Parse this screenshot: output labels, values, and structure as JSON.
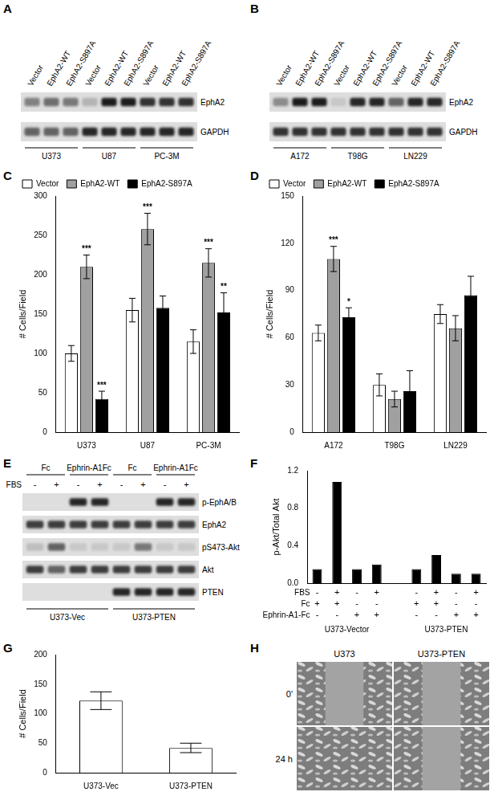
{
  "panel_labels": [
    "A",
    "B",
    "C",
    "D",
    "E",
    "F",
    "G",
    "H"
  ],
  "blots": [
    {
      "lanes": [
        "Vector",
        "EphA2-WT",
        "EphA2-S897A",
        "Vector",
        "EphA2-WT",
        "EphA2-S897A",
        "Vector",
        "EphA2-WT",
        "EphA2-S897A"
      ],
      "rows": [
        {
          "label": "EphA2",
          "intensity": [
            0.45,
            0.55,
            0.5,
            0.2,
            0.95,
            0.95,
            0.85,
            0.85,
            0.85
          ]
        },
        {
          "label": "GAPDH",
          "intensity": [
            0.6,
            0.6,
            0.6,
            0.9,
            0.9,
            0.9,
            0.9,
            0.9,
            0.9
          ]
        }
      ],
      "groups": [
        {
          "label": "U373",
          "lanes": 3
        },
        {
          "label": "U87",
          "lanes": 3
        },
        {
          "label": "PC-3M",
          "lanes": 3
        }
      ]
    },
    {
      "lanes": [
        "Vector",
        "EphA2-WT",
        "EphA2-S897A",
        "Vector",
        "EphA2-WT",
        "EphA2-S897A",
        "Vector",
        "EphA2-WT",
        "EphA2-S897A"
      ],
      "rows": [
        {
          "label": "EphA2",
          "intensity": [
            0.4,
            0.95,
            0.95,
            0.1,
            0.9,
            0.9,
            0.6,
            0.9,
            0.9
          ]
        },
        {
          "label": "GAPDH",
          "intensity": [
            0.85,
            0.85,
            0.85,
            0.85,
            0.85,
            0.85,
            0.85,
            0.85,
            0.85
          ]
        }
      ],
      "groups": [
        {
          "label": "A172",
          "lanes": 3
        },
        {
          "label": "T98G",
          "lanes": 3
        },
        {
          "label": "LN229",
          "lanes": 3
        }
      ]
    },
    {
      "treatments": [
        {
          "label": "Fc",
          "lanes": 2
        },
        {
          "label": "Ephrin-A1Fc",
          "lanes": 2
        },
        {
          "label": "Fc",
          "lanes": 2
        },
        {
          "label": "Ephrin-A1Fc",
          "lanes": 2
        }
      ],
      "fbs_label": "FBS",
      "fbs": [
        "-",
        "+",
        "-",
        "+",
        "-",
        "+",
        "-",
        "+"
      ],
      "rows": [
        {
          "label": "p-EphA/B",
          "intensity": [
            0,
            0,
            0.9,
            0.9,
            0,
            0,
            0.9,
            0.9
          ]
        },
        {
          "label": "EphA2",
          "intensity": [
            0.8,
            0.8,
            0.8,
            0.8,
            0.8,
            0.8,
            0.8,
            0.8
          ]
        },
        {
          "label": "pS473-Akt",
          "intensity": [
            0.15,
            0.6,
            0.1,
            0.1,
            0.1,
            0.5,
            0.1,
            0.1
          ]
        },
        {
          "label": "Akt",
          "intensity": [
            0.8,
            0.6,
            0.8,
            0.8,
            0.8,
            0.8,
            0.8,
            0.8
          ]
        },
        {
          "label": "PTEN",
          "intensity": [
            0,
            0,
            0,
            0,
            0.9,
            0.9,
            0.9,
            0.9
          ]
        }
      ],
      "groups": [
        {
          "label": "U373-Vec",
          "lanes": 4
        },
        {
          "label": "U373-PTEN",
          "lanes": 4
        }
      ]
    }
  ],
  "chart_data": [
    {
      "type": "bar",
      "categories": [
        "U373",
        "U87",
        "PC-3M"
      ],
      "y_label": "# Cells/Field",
      "ylim": [
        0,
        300
      ],
      "yticks": [
        0,
        50,
        100,
        150,
        200,
        250,
        300
      ],
      "grid": false,
      "legend": "top-left",
      "series": [
        {
          "name": "Vector",
          "color": "#ffffff",
          "values": [
            100,
            155,
            115
          ],
          "errors": [
            10,
            15,
            15
          ]
        },
        {
          "name": "EphA2-WT",
          "color": "#a0a0a0",
          "values": [
            210,
            258,
            215
          ],
          "errors": [
            15,
            20,
            18
          ],
          "annotations": [
            "***",
            "***",
            "***"
          ]
        },
        {
          "name": "EphA2-S897A",
          "color": "#000000",
          "values": [
            42,
            158,
            152
          ],
          "errors": [
            10,
            15,
            25
          ],
          "annotations": [
            "***",
            null,
            "**"
          ]
        }
      ]
    },
    {
      "type": "bar",
      "categories": [
        "A172",
        "T98G",
        "LN229"
      ],
      "y_label": "# Cells/Field",
      "ylim": [
        0,
        150
      ],
      "yticks": [
        0,
        30,
        60,
        90,
        120,
        150
      ],
      "grid": false,
      "legend": "top-left",
      "series": [
        {
          "name": "Vector",
          "color": "#ffffff",
          "values": [
            63,
            30,
            75
          ],
          "errors": [
            5,
            7,
            6
          ]
        },
        {
          "name": "EphA2-WT",
          "color": "#a0a0a0",
          "values": [
            110,
            21,
            66
          ],
          "errors": [
            8,
            5,
            8
          ],
          "annotations": [
            "***",
            null,
            null
          ]
        },
        {
          "name": "EphA2-S897A",
          "color": "#000000",
          "values": [
            73,
            26,
            87
          ],
          "errors": [
            6,
            13,
            12
          ],
          "annotations": [
            "*",
            null,
            null
          ]
        }
      ]
    },
    {
      "type": "bar",
      "categories": [
        null,
        null,
        null,
        null,
        null,
        null,
        null,
        null,
        null
      ],
      "values": [
        0.15,
        1.08,
        0.15,
        0.2,
        null,
        0.15,
        0.3,
        0.1,
        0.1
      ],
      "color": "#000000",
      "y_label": "p-Akt/Total Akt",
      "ylim": [
        0,
        1.2
      ],
      "yticks": [
        {
          "value": 0,
          "label": "0.0"
        },
        0.4,
        0.8,
        1.2
      ],
      "grid": false,
      "tick_labels": "y",
      "conditions": [
        {
          "label": "FBS",
          "signs": [
            "-",
            "+",
            "-",
            "+",
            null,
            "-",
            "+",
            "-",
            "+"
          ]
        },
        {
          "label": "Fc",
          "signs": [
            "+",
            "+",
            "-",
            "-",
            null,
            "+",
            "+",
            "-",
            "-"
          ]
        },
        {
          "label": "Ephrin-A1-Fc",
          "signs": [
            "-",
            "-",
            "+",
            "+",
            null,
            "-",
            "-",
            "+",
            "+"
          ]
        }
      ],
      "groups": [
        {
          "label": "U373-Vector",
          "span": [
            0,
            3
          ]
        },
        {
          "label": "U373-PTEN",
          "span": [
            5,
            8
          ]
        }
      ]
    },
    {
      "type": "bar",
      "categories": [
        "U373-Vec",
        "U373-PTEN"
      ],
      "values": [
        122,
        42
      ],
      "errors": [
        15,
        8
      ],
      "color": "#ffffff",
      "y_label": "# Cells/Field",
      "ylim": [
        0,
        200
      ],
      "yticks": [
        0,
        50,
        100,
        150,
        200
      ],
      "grid": false
    }
  ],
  "image": {
    "columns": [
      "U373",
      "U373-PTEN"
    ],
    "rows": [
      "0'",
      "24 h"
    ]
  }
}
